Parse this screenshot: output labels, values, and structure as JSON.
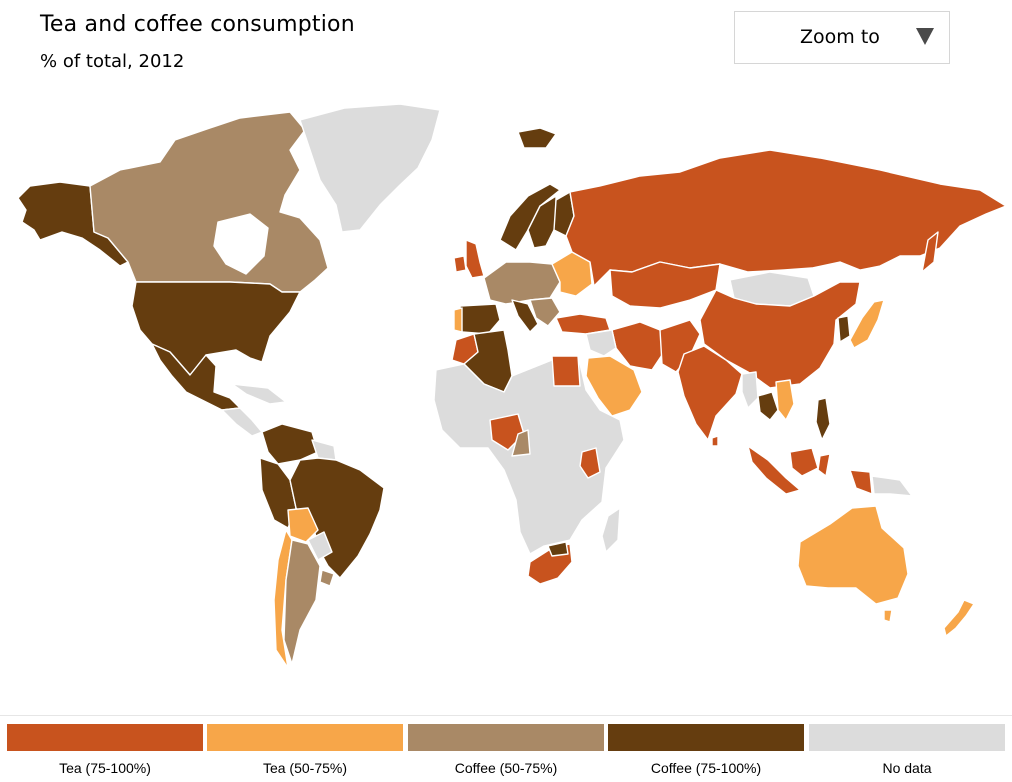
{
  "header": {
    "title": "Tea and coffee consumption",
    "subtitle": "% of total, 2012"
  },
  "zoom_control": {
    "label": "Zoom to",
    "icon": "triangle-down-icon"
  },
  "colors": {
    "tea_75_100": "#c8531e",
    "tea_50_75": "#f7a649",
    "coffee_50_75": "#a98966",
    "coffee_75_100": "#653d0f",
    "no_data": "#dcdcdc"
  },
  "legend": [
    {
      "label": "Tea (75-100%)",
      "color": "#c8531e"
    },
    {
      "label": "Tea (50-75%)",
      "color": "#f7a649"
    },
    {
      "label": "Coffee (50-75%)",
      "color": "#a98966"
    },
    {
      "label": "Coffee (75-100%)",
      "color": "#653d0f"
    },
    {
      "label": "No data",
      "color": "#dcdcdc"
    }
  ]
}
